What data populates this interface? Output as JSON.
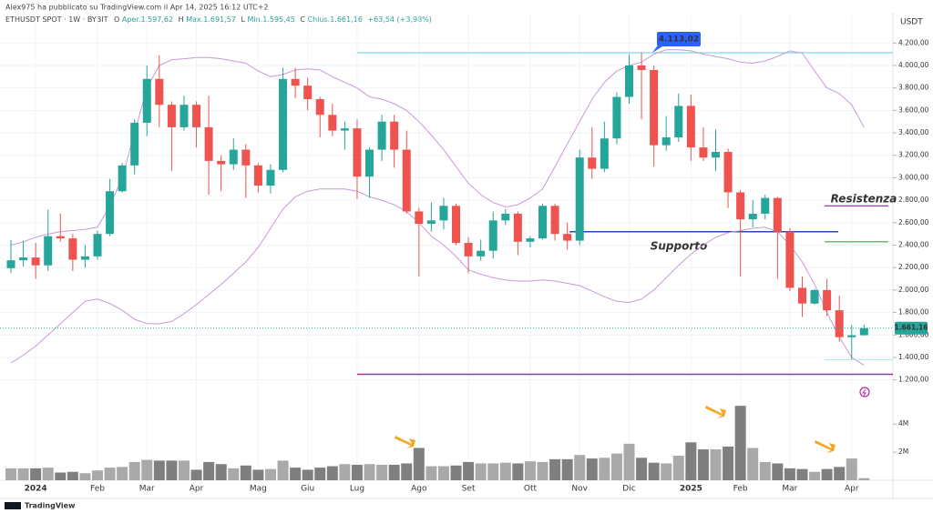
{
  "header": {
    "author_line": "Alex975 ha pubblicato su TradingView.com il Apr 14, 2025 16:12 UTC+2",
    "symbol": "ETHUSDT SPOT · 1W · BYBIT",
    "ohlc": [
      {
        "key": "O",
        "text": "Aper.1.597,62"
      },
      {
        "key": "H",
        "text": "Max.1.691,57"
      },
      {
        "key": "L",
        "text": "Min.1.595,45"
      },
      {
        "key": "C",
        "text": "Chius.1.661,16"
      }
    ],
    "change": "+63,54 (+3,98%)",
    "unit": "USDT",
    "footer": "TradingView"
  },
  "chart_data": [
    {
      "type": "candlestick",
      "categories": [
        null,
        null,
        "2024",
        null,
        null,
        null,
        null,
        "Feb",
        null,
        null,
        null,
        "Mar",
        null,
        null,
        null,
        "Apr",
        null,
        null,
        null,
        null,
        "Mag",
        null,
        null,
        null,
        "Giu",
        null,
        null,
        null,
        "Lug",
        null,
        null,
        null,
        null,
        "Ago",
        null,
        null,
        null,
        "Set",
        null,
        null,
        null,
        null,
        "Ott",
        null,
        null,
        null,
        "Nov",
        null,
        null,
        null,
        "Dic",
        null,
        null,
        null,
        null,
        "2025",
        null,
        null,
        null,
        "Feb",
        null,
        null,
        null,
        "Mar",
        null,
        null,
        null,
        null,
        "Apr",
        null
      ],
      "open": [
        2195,
        2265,
        2290,
        2220,
        2480,
        2460,
        2270,
        2300,
        2500,
        2880,
        3110,
        3490,
        3880,
        3650,
        3450,
        3650,
        3450,
        3150,
        3120,
        3250,
        3110,
        2930,
        3070,
        3880,
        3820,
        3700,
        3560,
        3420,
        3440,
        3010,
        3250,
        3500,
        3250,
        2700,
        2590,
        2620,
        2750,
        2420,
        2300,
        2350,
        2620,
        2680,
        2430,
        2460,
        2750,
        2500,
        2440,
        3180,
        3080,
        3350,
        3720,
        4000,
        3960,
        3290,
        3360,
        3640,
        3270,
        3180,
        3230,
        2870,
        2630,
        2680,
        2820,
        2520,
        2020,
        1880,
        2000,
        1820,
        1580,
        1597.62
      ],
      "high": [
        2445,
        2440,
        2420,
        2715,
        2680,
        2500,
        2400,
        2530,
        2990,
        3130,
        3520,
        4000,
        4090,
        3680,
        3730,
        3680,
        3730,
        3200,
        3350,
        3300,
        3130,
        3120,
        3980,
        3980,
        3890,
        3720,
        3660,
        3500,
        3520,
        3270,
        3560,
        3560,
        3420,
        2730,
        2780,
        2820,
        2770,
        2470,
        2450,
        2700,
        2720,
        2700,
        2480,
        2770,
        2770,
        2600,
        3250,
        3450,
        3500,
        3760,
        4100,
        4113.02,
        4000,
        3550,
        3750,
        3740,
        3450,
        3430,
        3260,
        2890,
        2800,
        2850,
        2830,
        2550,
        2120,
        2010,
        2100,
        1950,
        1690,
        1691.57
      ],
      "low": [
        2150,
        2210,
        2100,
        2170,
        2430,
        2170,
        2200,
        2270,
        2480,
        2870,
        3030,
        3370,
        3450,
        3060,
        3420,
        3270,
        2850,
        2880,
        3070,
        2820,
        2870,
        2860,
        3050,
        3710,
        3600,
        3360,
        3370,
        3250,
        2810,
        2820,
        3150,
        3090,
        2680,
        2120,
        2520,
        2540,
        2400,
        2150,
        2260,
        2280,
        2580,
        2310,
        2380,
        2450,
        2440,
        2360,
        2400,
        2990,
        3050,
        3300,
        3660,
        3520,
        3100,
        3240,
        3320,
        3150,
        3150,
        3060,
        2730,
        2120,
        2560,
        2630,
        2100,
        1990,
        1760,
        1870,
        1770,
        1540,
        1385,
        1595.45
      ],
      "close": [
        2265,
        2290,
        2220,
        2480,
        2460,
        2270,
        2300,
        2500,
        2880,
        3110,
        3490,
        3880,
        3650,
        3450,
        3650,
        3450,
        3150,
        3120,
        3250,
        3110,
        2930,
        3070,
        3880,
        3820,
        3700,
        3560,
        3420,
        3440,
        3010,
        3250,
        3500,
        3250,
        2700,
        2590,
        2620,
        2750,
        2420,
        2300,
        2350,
        2620,
        2680,
        2430,
        2460,
        2750,
        2500,
        2440,
        3180,
        3080,
        3350,
        3720,
        4000,
        3960,
        3290,
        3360,
        3640,
        3270,
        3180,
        3230,
        2870,
        2630,
        2680,
        2820,
        2520,
        2020,
        1880,
        2000,
        1820,
        1580,
        1597.62,
        1661.16
      ],
      "up_color": "#26a69a",
      "down_color": "#ef5350",
      "overlays": [
        {
          "color": "#c89ad8",
          "values": [
            2400,
            2430,
            2470,
            2500,
            2520,
            2530,
            2540,
            2560,
            2750,
            3000,
            3400,
            3800,
            4000,
            4050,
            4060,
            4070,
            4070,
            4060,
            4040,
            4020,
            3950,
            3900,
            3920,
            3960,
            3970,
            3960,
            3900,
            3850,
            3800,
            3720,
            3700,
            3660,
            3600,
            3500,
            3380,
            3250,
            3100,
            2950,
            2850,
            2780,
            2740,
            2760,
            2820,
            2900,
            3100,
            3300,
            3500,
            3700,
            3850,
            3950,
            4000,
            4030,
            4100,
            4140,
            4140,
            4130,
            4100,
            4080,
            4060,
            4030,
            4020,
            4040,
            4080,
            4130,
            4110,
            3950,
            3800,
            3750,
            3650,
            3450
          ]
        },
        {
          "color": "#c89ad8",
          "values": [
            1350,
            1420,
            1500,
            1600,
            1700,
            1800,
            1900,
            1920,
            1880,
            1820,
            1740,
            1700,
            1700,
            1720,
            1790,
            1870,
            1960,
            2050,
            2150,
            2250,
            2380,
            2550,
            2720,
            2830,
            2880,
            2900,
            2900,
            2900,
            2880,
            2830,
            2800,
            2760,
            2700,
            2600,
            2480,
            2400,
            2300,
            2180,
            2140,
            2110,
            2090,
            2080,
            2080,
            2090,
            2080,
            2060,
            2040,
            1990,
            1940,
            1900,
            1890,
            1920,
            2000,
            2110,
            2220,
            2320,
            2400,
            2470,
            2510,
            2530,
            2550,
            2560,
            2520,
            2400,
            2250,
            2050,
            1800,
            1580,
            1400,
            1330
          ]
        }
      ],
      "levels": [
        {
          "value": 4113.02,
          "color": "#7fd6e6",
          "label": "4.113,02"
        },
        {
          "value": 2750,
          "color": "#8e24aa",
          "label": "Resistenza"
        },
        {
          "value": 2520,
          "color": "#1f4fa8",
          "label": "Supporto"
        },
        {
          "value": 2430,
          "color": "#43a047"
        },
        {
          "value": 1380,
          "color": "#b2ebf2"
        },
        {
          "value": 1250,
          "color": "#b5289a"
        }
      ],
      "last_price": {
        "value": 1661.16,
        "label": "1.661,16"
      },
      "ylim": [
        1100,
        4340
      ],
      "yticks": [
        {
          "value": 1200,
          "label": "1.200,00"
        },
        {
          "value": 1400,
          "label": "1.400,00"
        },
        {
          "value": 1600,
          "label": "1.600,00"
        },
        {
          "value": 1800,
          "label": "1.800,00"
        },
        {
          "value": 2000,
          "label": "2.000,00"
        },
        {
          "value": 2200,
          "label": "2.200,00"
        },
        {
          "value": 2400,
          "label": "2.400,00"
        },
        {
          "value": 2600,
          "label": "2.600,00"
        },
        {
          "value": 2800,
          "label": "2.800,00"
        },
        {
          "value": 3000,
          "label": "3.000,00"
        },
        {
          "value": 3200,
          "label": "3.200,00"
        },
        {
          "value": 3400,
          "label": "3.400,00"
        },
        {
          "value": 3600,
          "label": "3.600,00"
        },
        {
          "value": 3800,
          "label": "3.800,00"
        },
        {
          "value": 4000,
          "label": "4.000,00"
        },
        {
          "value": 4200,
          "label": "4.200,00"
        }
      ],
      "grid": true
    },
    {
      "type": "bar",
      "values": [
        850000,
        850000,
        850000,
        900000,
        550000,
        600000,
        500000,
        700000,
        900000,
        950000,
        1300000,
        1450000,
        1400000,
        1400000,
        1400000,
        750000,
        1300000,
        1150000,
        850000,
        1050000,
        750000,
        800000,
        1400000,
        900000,
        750000,
        900000,
        1000000,
        1150000,
        1100000,
        1150000,
        1100000,
        1100000,
        1200000,
        2300000,
        1000000,
        1000000,
        1050000,
        1300000,
        1200000,
        1200000,
        1250000,
        1200000,
        1350000,
        1300000,
        1500000,
        1500000,
        1800000,
        1550000,
        1600000,
        1900000,
        2600000,
        1600000,
        1250000,
        1200000,
        1750000,
        2700000,
        2200000,
        2200000,
        2400000,
        5300000,
        2300000,
        1300000,
        1200000,
        850000,
        800000,
        600000,
        800000,
        950000,
        1550000,
        150000
      ],
      "up_color": "#a9a9a9",
      "down_color": "#7f7f7f",
      "ylim": [
        0,
        5700000
      ],
      "yticks": [
        {
          "value": 2000000,
          "label": "2M"
        },
        {
          "value": 4000000,
          "label": "4M"
        }
      ]
    }
  ]
}
